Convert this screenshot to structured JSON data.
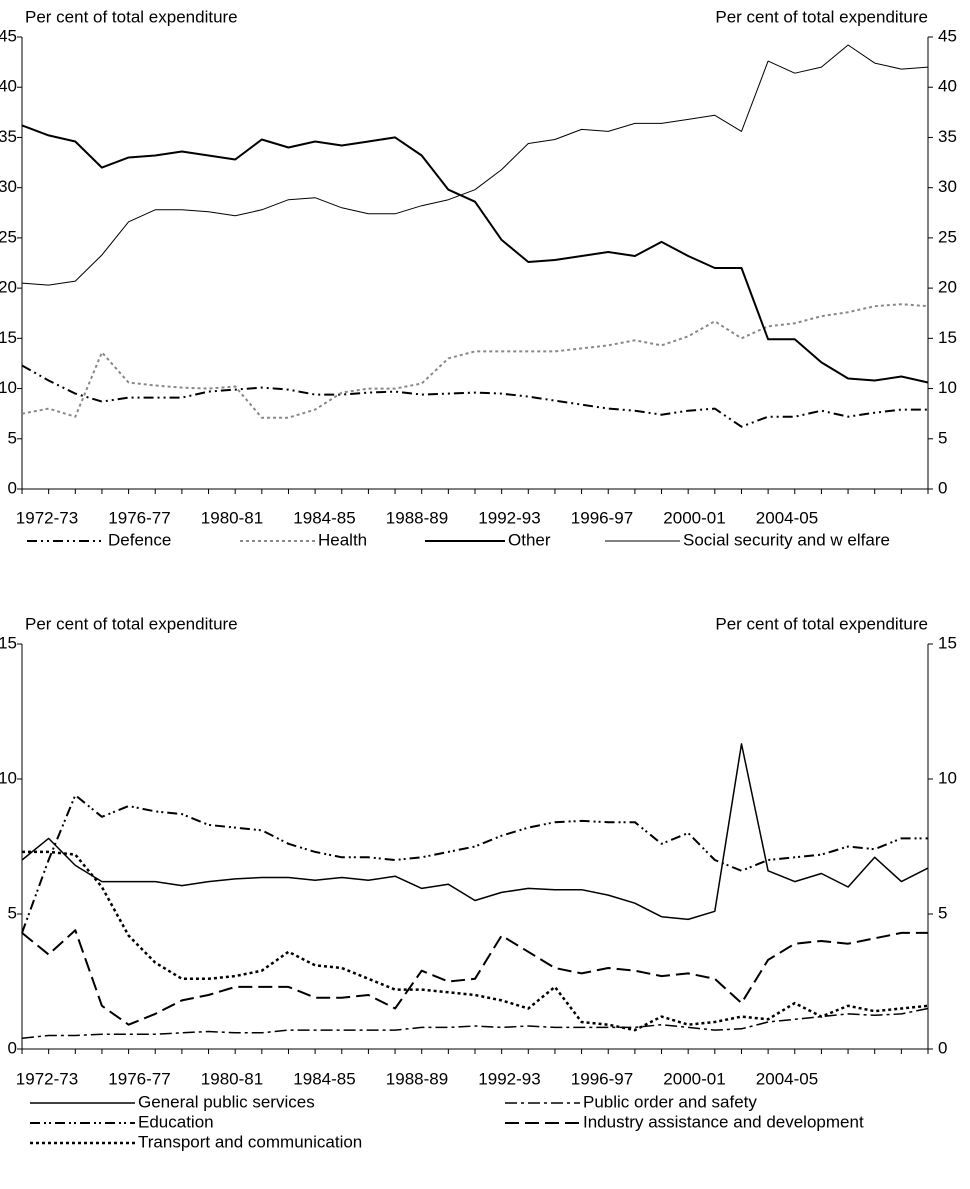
{
  "chart_data": [
    {
      "type": "line",
      "ylabel": "Per cent of total expenditure",
      "y2label": "Per cent of total expenditure",
      "categories": [
        "1972-73",
        null,
        null,
        null,
        "1976-77",
        null,
        null,
        null,
        "1980-81",
        null,
        null,
        null,
        "1984-85",
        null,
        null,
        null,
        "1988-89",
        null,
        null,
        null,
        "1992-93",
        null,
        null,
        null,
        "1996-97",
        null,
        null,
        null,
        "2000-01",
        null,
        null,
        null,
        "2004-05",
        null,
        null
      ],
      "ylim": [
        0,
        45
      ],
      "yticks": [
        0,
        5,
        10,
        15,
        20,
        25,
        30,
        35,
        40,
        45
      ],
      "y2lim": [
        0,
        45
      ],
      "y2ticks": [
        0,
        5,
        10,
        15,
        20,
        25,
        30,
        35,
        40,
        45
      ],
      "series": [
        {
          "name": "Defence",
          "color": "#000000",
          "dash": "10,4,2,4,2,4",
          "width": 2,
          "values": [
            12.3,
            10.8,
            9.5,
            8.7,
            9.1,
            9.1,
            9.1,
            9.7,
            9.9,
            10.1,
            9.9,
            9.4,
            9.4,
            9.6,
            9.7,
            9.4,
            9.5,
            9.6,
            9.5,
            9.2,
            8.8,
            8.4,
            8.0,
            7.8,
            7.4,
            7.8,
            8.0,
            6.2,
            7.2,
            7.2,
            7.8,
            7.2,
            7.6,
            7.9,
            7.9
          ]
        },
        {
          "name": "Health",
          "color": "#888888",
          "dash": "3,3",
          "width": 2,
          "values": [
            7.5,
            8.0,
            7.2,
            13.6,
            10.6,
            10.3,
            10.1,
            10.0,
            10.2,
            7.1,
            7.1,
            7.9,
            9.6,
            10.0,
            10.0,
            10.5,
            13.0,
            13.7,
            13.7,
            13.7,
            13.7,
            14.0,
            14.3,
            14.8,
            14.3,
            15.2,
            16.7,
            15.0,
            16.2,
            16.5,
            17.2,
            17.6,
            18.2,
            18.4,
            18.2
          ]
        },
        {
          "name": "Other",
          "color": "#000000",
          "dash": "",
          "width": 2,
          "values": [
            36.2,
            35.2,
            34.6,
            32.0,
            33.0,
            33.2,
            33.6,
            33.2,
            32.8,
            34.8,
            34.0,
            34.6,
            34.2,
            34.6,
            35.0,
            33.2,
            29.8,
            28.6,
            24.8,
            22.6,
            22.8,
            23.2,
            23.6,
            23.2,
            24.6,
            23.2,
            22.0,
            22.0,
            14.9,
            14.9,
            12.6,
            11.0,
            10.8,
            11.2,
            10.6
          ]
        },
        {
          "name": "Social security and w elfare",
          "color": "#000000",
          "dash": "",
          "width": 1,
          "values": [
            20.5,
            20.3,
            20.7,
            23.3,
            26.6,
            27.8,
            27.8,
            27.6,
            27.2,
            27.8,
            28.8,
            29.0,
            28.0,
            27.4,
            27.4,
            28.2,
            28.8,
            29.8,
            31.8,
            34.4,
            34.8,
            35.8,
            35.6,
            36.4,
            36.4,
            36.8,
            37.2,
            35.6,
            42.6,
            41.4,
            42.0,
            44.2,
            42.4,
            41.8,
            42.0
          ]
        }
      ]
    },
    {
      "type": "line",
      "ylabel": "Per cent of total expenditure",
      "y2label": "Per cent of total expenditure",
      "categories": [
        "1972-73",
        null,
        null,
        null,
        "1976-77",
        null,
        null,
        null,
        "1980-81",
        null,
        null,
        null,
        "1984-85",
        null,
        null,
        null,
        "1988-89",
        null,
        null,
        null,
        "1992-93",
        null,
        null,
        null,
        "1996-97",
        null,
        null,
        null,
        "2000-01",
        null,
        null,
        null,
        "2004-05",
        null,
        null
      ],
      "ylim": [
        0,
        15
      ],
      "yticks": [
        0,
        5,
        10,
        15
      ],
      "y2lim": [
        0,
        15
      ],
      "y2ticks": [
        0,
        5,
        10,
        15
      ],
      "series": [
        {
          "name": "General public services",
          "color": "#000000",
          "dash": "",
          "width": 1.5,
          "values": [
            7.0,
            7.8,
            6.8,
            6.2,
            6.2,
            6.2,
            6.05,
            6.2,
            6.3,
            6.35,
            6.35,
            6.25,
            6.35,
            6.25,
            6.4,
            5.95,
            6.1,
            5.5,
            5.8,
            5.95,
            5.9,
            5.9,
            5.7,
            5.4,
            4.9,
            4.8,
            5.1,
            11.3,
            6.6,
            6.2,
            6.5,
            6.0,
            7.1,
            6.2,
            6.7
          ]
        },
        {
          "name": "Public order and safety",
          "color": "#000000",
          "dash": "12,4,3,4",
          "width": 1.5,
          "values": [
            0.4,
            0.5,
            0.5,
            0.55,
            0.55,
            0.55,
            0.6,
            0.65,
            0.6,
            0.6,
            0.7,
            0.7,
            0.7,
            0.7,
            0.7,
            0.8,
            0.8,
            0.85,
            0.8,
            0.85,
            0.8,
            0.8,
            0.8,
            0.8,
            0.9,
            0.8,
            0.7,
            0.75,
            1.0,
            1.1,
            1.2,
            1.3,
            1.25,
            1.3,
            1.5
          ]
        },
        {
          "name": "Education",
          "color": "#000000",
          "dash": "10,4,2,3,2,4",
          "width": 2,
          "values": [
            4.3,
            7.0,
            9.4,
            8.6,
            9.0,
            8.8,
            8.7,
            8.3,
            8.2,
            8.1,
            7.6,
            7.3,
            7.1,
            7.1,
            7.0,
            7.1,
            7.3,
            7.5,
            7.9,
            8.2,
            8.4,
            8.45,
            8.4,
            8.4,
            7.6,
            8.0,
            7.0,
            6.6,
            7.0,
            7.1,
            7.2,
            7.5,
            7.4,
            7.8,
            7.8
          ]
        },
        {
          "name": "Industry assistance and development",
          "color": "#000000",
          "dash": "14,6",
          "width": 2,
          "values": [
            4.3,
            3.5,
            4.4,
            1.6,
            0.9,
            1.3,
            1.8,
            2.0,
            2.3,
            2.3,
            2.3,
            1.9,
            1.9,
            2.0,
            1.5,
            2.9,
            2.5,
            2.6,
            4.2,
            3.6,
            3.0,
            2.8,
            3.0,
            2.9,
            2.7,
            2.8,
            2.6,
            1.7,
            3.3,
            3.9,
            4.0,
            3.9,
            4.1,
            4.3,
            4.3
          ]
        },
        {
          "name": "Transport and communication",
          "color": "#000000",
          "dash": "3,3",
          "width": 2.5,
          "values": [
            7.3,
            7.3,
            7.2,
            6.0,
            4.2,
            3.2,
            2.6,
            2.6,
            2.7,
            2.9,
            3.6,
            3.1,
            3.0,
            2.6,
            2.2,
            2.2,
            2.1,
            2.0,
            1.8,
            1.5,
            2.3,
            1.0,
            0.9,
            0.7,
            1.2,
            0.9,
            1.0,
            1.2,
            1.1,
            1.7,
            1.2,
            1.6,
            1.4,
            1.5,
            1.6
          ]
        }
      ]
    }
  ]
}
